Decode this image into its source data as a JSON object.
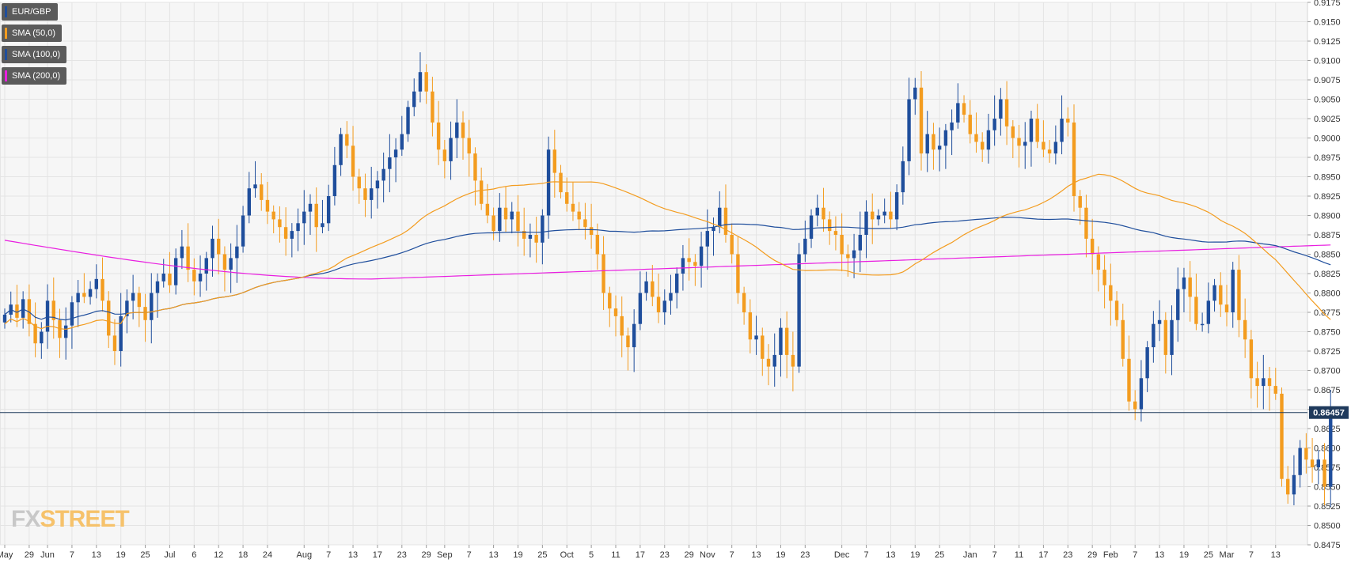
{
  "chart_data": {
    "type": "candlestick",
    "title": "",
    "pair": "EUR/GBP",
    "last_price": "0.86457",
    "last_price_value": 0.86457,
    "brand": "FXSTREET",
    "colors": {
      "up": "#1f4e9c",
      "down": "#f39c1f",
      "sma50": "#f39c1f",
      "sma100": "#1f4e9c",
      "sma200": "#e91ee0",
      "last_line": "#1f3a5c",
      "grid": "#e4e4e4"
    },
    "legend": [
      {
        "label": "EUR/GBP",
        "color": "#1f4e9c"
      },
      {
        "label": "SMA (50,0)",
        "color": "#f39c1f"
      },
      {
        "label": "SMA (100,0)",
        "color": "#1f4e9c"
      },
      {
        "label": "SMA (200,0)",
        "color": "#e91ee0"
      }
    ],
    "y_axis": {
      "min": 0.8475,
      "max": 0.9175,
      "ticks": [
        "0.9175",
        "0.9150",
        "0.9125",
        "0.9100",
        "0.9075",
        "0.9050",
        "0.9025",
        "0.9000",
        "0.8975",
        "0.8950",
        "0.8925",
        "0.8900",
        "0.8875",
        "0.8850",
        "0.8825",
        "0.8800",
        "0.8775",
        "0.8750",
        "0.8725",
        "0.8700",
        "0.8675",
        "0.8650",
        "0.8625",
        "0.8600",
        "0.8575",
        "0.8550",
        "0.8525",
        "0.8500",
        "0.8475"
      ]
    },
    "x_axis": {
      "ticks": [
        {
          "label": "May",
          "i": 0
        },
        {
          "label": "29",
          "i": 4
        },
        {
          "label": "Jun",
          "i": 7
        },
        {
          "label": "7",
          "i": 11
        },
        {
          "label": "13",
          "i": 15
        },
        {
          "label": "19",
          "i": 19
        },
        {
          "label": "25",
          "i": 23
        },
        {
          "label": "Jul",
          "i": 27
        },
        {
          "label": "6",
          "i": 31
        },
        {
          "label": "12",
          "i": 35
        },
        {
          "label": "18",
          "i": 39
        },
        {
          "label": "24",
          "i": 43
        },
        {
          "label": "Aug",
          "i": 49
        },
        {
          "label": "7",
          "i": 53
        },
        {
          "label": "13",
          "i": 57
        },
        {
          "label": "17",
          "i": 61
        },
        {
          "label": "23",
          "i": 65
        },
        {
          "label": "29",
          "i": 69
        },
        {
          "label": "Sep",
          "i": 72
        },
        {
          "label": "7",
          "i": 76
        },
        {
          "label": "13",
          "i": 80
        },
        {
          "label": "19",
          "i": 84
        },
        {
          "label": "25",
          "i": 88
        },
        {
          "label": "Oct",
          "i": 92
        },
        {
          "label": "5",
          "i": 96
        },
        {
          "label": "11",
          "i": 100
        },
        {
          "label": "17",
          "i": 104
        },
        {
          "label": "23",
          "i": 108
        },
        {
          "label": "29",
          "i": 112
        },
        {
          "label": "Nov",
          "i": 115
        },
        {
          "label": "7",
          "i": 119
        },
        {
          "label": "13",
          "i": 123
        },
        {
          "label": "19",
          "i": 127
        },
        {
          "label": "23",
          "i": 131
        },
        {
          "label": "Dec",
          "i": 137
        },
        {
          "label": "7",
          "i": 141
        },
        {
          "label": "13",
          "i": 145
        },
        {
          "label": "19",
          "i": 149
        },
        {
          "label": "25",
          "i": 153
        },
        {
          "label": "Jan",
          "i": 158
        },
        {
          "label": "7",
          "i": 162
        },
        {
          "label": "11",
          "i": 166
        },
        {
          "label": "17",
          "i": 170
        },
        {
          "label": "23",
          "i": 174
        },
        {
          "label": "29",
          "i": 178
        },
        {
          "label": "Feb",
          "i": 181
        },
        {
          "label": "7",
          "i": 185
        },
        {
          "label": "13",
          "i": 189
        },
        {
          "label": "19",
          "i": 193
        },
        {
          "label": "25",
          "i": 197
        },
        {
          "label": "Mar",
          "i": 200
        },
        {
          "label": "7",
          "i": 204
        },
        {
          "label": "13",
          "i": 208
        }
      ]
    },
    "closes": [
      0.8772,
      0.8785,
      0.8768,
      0.8792,
      0.876,
      0.8735,
      0.875,
      0.879,
      0.8765,
      0.8742,
      0.8758,
      0.8788,
      0.88,
      0.8795,
      0.8805,
      0.8818,
      0.879,
      0.8745,
      0.8725,
      0.877,
      0.879,
      0.88,
      0.8782,
      0.8765,
      0.88,
      0.8815,
      0.8825,
      0.881,
      0.8845,
      0.886,
      0.883,
      0.8815,
      0.8825,
      0.8845,
      0.887,
      0.885,
      0.883,
      0.8845,
      0.886,
      0.89,
      0.8935,
      0.894,
      0.892,
      0.8905,
      0.8895,
      0.8885,
      0.887,
      0.888,
      0.889,
      0.8905,
      0.8915,
      0.8885,
      0.889,
      0.8925,
      0.8965,
      0.9005,
      0.899,
      0.895,
      0.8935,
      0.892,
      0.8935,
      0.8945,
      0.896,
      0.8975,
      0.8985,
      0.9005,
      0.904,
      0.906,
      0.9085,
      0.906,
      0.902,
      0.8985,
      0.897,
      0.9,
      0.902,
      0.9,
      0.898,
      0.8945,
      0.8915,
      0.89,
      0.888,
      0.891,
      0.8895,
      0.8905,
      0.888,
      0.887,
      0.8875,
      0.8865,
      0.89,
      0.8985,
      0.8955,
      0.893,
      0.8915,
      0.8905,
      0.8895,
      0.8885,
      0.8875,
      0.885,
      0.88,
      0.878,
      0.877,
      0.8745,
      0.873,
      0.876,
      0.88,
      0.8815,
      0.8795,
      0.8775,
      0.879,
      0.88,
      0.8825,
      0.8845,
      0.884,
      0.8835,
      0.886,
      0.888,
      0.8885,
      0.891,
      0.8875,
      0.885,
      0.88,
      0.8775,
      0.874,
      0.8745,
      0.8715,
      0.8705,
      0.872,
      0.8755,
      0.872,
      0.8705,
      0.885,
      0.887,
      0.89,
      0.891,
      0.8895,
      0.888,
      0.8875,
      0.885,
      0.8845,
      0.8855,
      0.8875,
      0.8905,
      0.8895,
      0.89,
      0.8905,
      0.8895,
      0.893,
      0.897,
      0.905,
      0.9065,
      0.898,
      0.9005,
      0.8985,
      0.899,
      0.901,
      0.902,
      0.9045,
      0.903,
      0.9005,
      0.8995,
      0.8985,
      0.901,
      0.9025,
      0.905,
      0.9015,
      0.9,
      0.899,
      0.8995,
      0.9025,
      0.8995,
      0.8985,
      0.898,
      0.8995,
      0.9025,
      0.902,
      0.8925,
      0.891,
      0.887,
      0.885,
      0.883,
      0.881,
      0.879,
      0.8765,
      0.8715,
      0.866,
      0.865,
      0.869,
      0.873,
      0.876,
      0.8765,
      0.872,
      0.8765,
      0.8805,
      0.882,
      0.8795,
      0.876,
      0.876,
      0.879,
      0.881,
      0.8785,
      0.8775,
      0.883,
      0.8765,
      0.874,
      0.869,
      0.868,
      0.869,
      0.868,
      0.867,
      0.856,
      0.854,
      0.8565,
      0.86,
      0.8585,
      0.8575,
      0.8585,
      0.855,
      0.8645
    ]
  }
}
